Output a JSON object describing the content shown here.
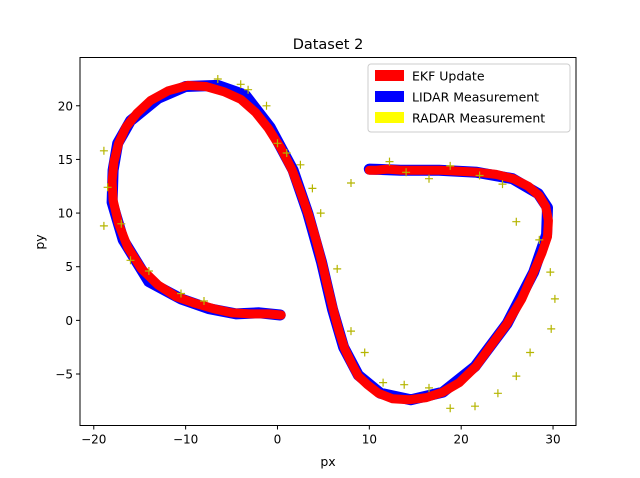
{
  "chart_data": {
    "type": "line",
    "title": "Dataset 2",
    "xlabel": "px",
    "ylabel": "py",
    "xlim": [
      -21.5,
      32.5
    ],
    "ylim": [
      -9.8,
      24.5
    ],
    "xticks": [
      -20,
      -10,
      0,
      10,
      20,
      30
    ],
    "yticks": [
      -5,
      0,
      5,
      10,
      15,
      20
    ],
    "grid": false,
    "legend_position": "top-right",
    "legend": [
      {
        "label": "EKF Update",
        "color": "#ff0000"
      },
      {
        "label": "LIDAR Measurement",
        "color": "#0000ff"
      },
      {
        "label": "RADAR Measurement",
        "color": "#ffff00"
      }
    ],
    "series": [
      {
        "name": "EKF Update",
        "color": "#ff0000",
        "x": [
          0.4,
          -1.0,
          -3.0,
          -5.0,
          -7.0,
          -9.0,
          -11.0,
          -13.0,
          -14.8,
          -16.3,
          -17.3,
          -17.9,
          -18.0,
          -17.8,
          -17.3,
          -16.5,
          -15.3,
          -13.8,
          -11.9,
          -9.8,
          -7.8,
          -5.8,
          -4.0,
          -2.4,
          -1.0,
          0.4,
          1.6,
          2.5,
          3.4,
          4.2,
          4.9,
          5.5,
          6.1,
          6.7,
          7.3,
          8.0,
          8.8,
          9.8,
          11.0,
          12.5,
          14.3,
          16.2,
          18.0,
          19.8,
          21.6,
          23.2,
          25.0,
          26.6,
          27.9,
          28.8,
          29.4,
          29.5,
          29.2,
          28.5,
          27.3,
          25.7,
          23.8,
          21.8,
          19.8,
          17.8,
          16.0,
          14.8,
          13.4,
          12.0,
          10.8,
          10.0
        ],
        "y": [
          0.5,
          0.6,
          0.6,
          0.7,
          1.1,
          1.6,
          2.2,
          3.3,
          4.8,
          6.8,
          9.0,
          11.2,
          13.0,
          14.8,
          16.5,
          18.0,
          19.3,
          20.5,
          21.4,
          21.9,
          21.8,
          21.3,
          20.6,
          19.4,
          17.9,
          16.0,
          14.0,
          12.0,
          9.8,
          7.5,
          5.2,
          3.0,
          0.9,
          -1.0,
          -2.6,
          -3.9,
          -5.2,
          -6.0,
          -6.8,
          -7.3,
          -7.4,
          -7.2,
          -6.7,
          -5.8,
          -4.3,
          -2.4,
          -0.3,
          2.0,
          4.5,
          6.3,
          7.8,
          9.3,
          10.6,
          11.6,
          12.5,
          13.2,
          13.6,
          13.8,
          13.9,
          14.0,
          14.0,
          14.0,
          14.0,
          14.1,
          14.0,
          14.0
        ]
      },
      {
        "name": "LIDAR Measurement",
        "color": "#0000ff",
        "x": [
          0.3,
          -2.0,
          -4.5,
          -7.5,
          -10.5,
          -14.0,
          -16.8,
          -18.0,
          -17.9,
          -17.4,
          -16.0,
          -13.0,
          -10.0,
          -6.5,
          -3.5,
          -0.8,
          1.7,
          3.3,
          4.8,
          6.0,
          7.2,
          8.8,
          11.2,
          14.5,
          18.0,
          21.5,
          25.0,
          27.9,
          29.3,
          29.4,
          28.4,
          25.6,
          21.7,
          17.6,
          13.4,
          10.0
        ],
        "y": [
          0.5,
          0.7,
          0.6,
          1.1,
          2.0,
          3.6,
          7.5,
          11.0,
          14.0,
          16.5,
          18.6,
          20.7,
          21.8,
          21.9,
          21.0,
          18.0,
          14.0,
          10.0,
          5.4,
          1.0,
          -2.5,
          -5.1,
          -6.8,
          -7.4,
          -6.7,
          -4.3,
          -0.3,
          4.5,
          8.0,
          10.5,
          11.8,
          13.2,
          13.8,
          14.0,
          14.0,
          14.1
        ]
      },
      {
        "name": "RADAR Measurement",
        "color": "#ffff00",
        "x": [
          -18.9,
          -18.5,
          -18.9,
          -17.0,
          -16.0,
          -14.0,
          -10.5,
          -8.0,
          -6.5,
          -3.2,
          -1.2,
          0.0,
          1.0,
          2.5,
          3.8,
          4.7,
          6.5,
          8.0,
          9.5,
          11.5,
          13.8,
          16.5,
          18.8,
          21.5,
          24.0,
          26.0,
          27.5,
          29.8,
          30.2,
          29.7,
          28.5,
          26.0,
          24.5,
          22.0,
          18.8,
          16.5,
          14.0,
          12.2,
          8.0,
          -4.0
        ],
        "y": [
          8.8,
          12.4,
          15.8,
          9.0,
          5.6,
          4.6,
          2.5,
          1.8,
          22.5,
          21.5,
          20.0,
          16.5,
          15.6,
          14.5,
          12.3,
          10.0,
          4.8,
          -1.0,
          -3.0,
          -5.8,
          -6.0,
          -6.3,
          -8.2,
          -8.0,
          -6.8,
          -5.2,
          -3.0,
          -0.8,
          2.0,
          4.5,
          7.5,
          9.2,
          12.7,
          13.5,
          14.4,
          13.2,
          13.8,
          14.8,
          12.8,
          22.0
        ]
      }
    ]
  }
}
